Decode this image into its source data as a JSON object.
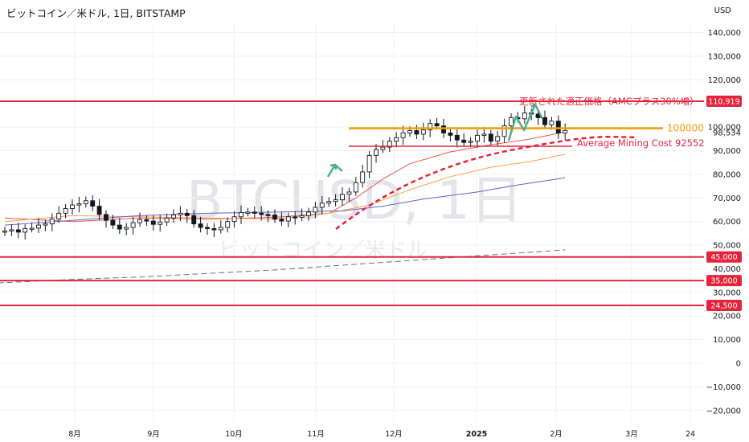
{
  "header": {
    "title": "ビットコイン／米ドル, 1日, BITSTAMP",
    "currency": "USD"
  },
  "watermark": {
    "symbol": "BTCUSD, 1日",
    "name": "ビットコイン／米ドル"
  },
  "colors": {
    "red_line": "#e5243b",
    "orange_line": "#f59d0c",
    "candle": "#131722",
    "ma_red": "#e8584f",
    "ma_orange": "#f5a04c",
    "ma_blue": "#6462c8",
    "ma_gray": "#6b6f78",
    "arrow": "#4cae8e"
  },
  "chart_data": {
    "type": "line",
    "title": "ビットコイン／米ドル, 1日, BITSTAMP",
    "y_axis": {
      "unit": "USD",
      "range": [
        -25000,
        150000
      ],
      "ticks": [
        140000,
        130000,
        120000,
        100000,
        90000,
        80000,
        70000,
        60000,
        50000,
        40000,
        30000,
        20000,
        10000,
        0,
        -10000,
        -20000
      ],
      "tick_labels": [
        "140,000",
        "130,000",
        "120,000",
        "100,000",
        "90,000",
        "80,000",
        "70,000",
        "60,000",
        "50,000",
        "40,000",
        "30,000",
        "20,000",
        "10,000",
        "0",
        "−10,000",
        "−20,000"
      ]
    },
    "x_axis": {
      "tick_labels": [
        "8月",
        "9月",
        "10月",
        "11月",
        "12月",
        "2025",
        "2月",
        "3月",
        "24"
      ]
    },
    "horizontal_levels": [
      {
        "value": 110919,
        "label": "110,919",
        "color": "#e5243b"
      },
      {
        "value": 45000,
        "label": "45,000",
        "color": "#e5243b"
      },
      {
        "value": 35000,
        "label": "35,000",
        "color": "#e5243b"
      },
      {
        "value": 24500,
        "label": "24,500",
        "color": "#e5243b"
      }
    ],
    "orange_level": {
      "value": 100000,
      "label": "100000"
    },
    "last_price_label": "98,534",
    "annotations": [
      {
        "text": "更新された適正価格（AMCプラス30%増）",
        "color": "#e5243b"
      },
      {
        "text": "Average Mining Cost 92552",
        "color": "#e5243b"
      }
    ],
    "price_series": [
      [
        0,
        56000
      ],
      [
        1,
        56500
      ],
      [
        2,
        55500
      ],
      [
        3,
        57000
      ],
      [
        4,
        57200
      ],
      [
        5,
        58500
      ],
      [
        6,
        59000
      ],
      [
        7,
        61000
      ],
      [
        8,
        63500
      ],
      [
        9,
        65500
      ],
      [
        10,
        67000
      ],
      [
        11,
        67500
      ],
      [
        12,
        68800
      ],
      [
        13,
        66500
      ],
      [
        14,
        63000
      ],
      [
        15,
        60500
      ],
      [
        16,
        58500
      ],
      [
        17,
        56800
      ],
      [
        18,
        57500
      ],
      [
        19,
        59500
      ],
      [
        20,
        60800
      ],
      [
        21,
        60200
      ],
      [
        22,
        58800
      ],
      [
        23,
        59800
      ],
      [
        24,
        61500
      ],
      [
        25,
        62800
      ],
      [
        26,
        63500
      ],
      [
        27,
        62500
      ],
      [
        28,
        59000
      ],
      [
        29,
        57500
      ],
      [
        30,
        57000
      ],
      [
        31,
        56500
      ],
      [
        32,
        57500
      ],
      [
        33,
        60000
      ],
      [
        34,
        62000
      ],
      [
        35,
        63800
      ],
      [
        36,
        64000
      ],
      [
        37,
        63500
      ],
      [
        38,
        63000
      ],
      [
        39,
        62800
      ],
      [
        40,
        61000
      ],
      [
        41,
        60200
      ],
      [
        42,
        62000
      ],
      [
        43,
        61800
      ],
      [
        44,
        62500
      ],
      [
        45,
        64000
      ],
      [
        46,
        66000
      ],
      [
        47,
        67800
      ],
      [
        48,
        68500
      ],
      [
        49,
        69200
      ],
      [
        50,
        71500
      ],
      [
        51,
        72500
      ],
      [
        52,
        76500
      ],
      [
        53,
        81000
      ],
      [
        54,
        88000
      ],
      [
        55,
        90500
      ],
      [
        56,
        91500
      ],
      [
        57,
        94000
      ],
      [
        58,
        95500
      ],
      [
        59,
        97500
      ],
      [
        60,
        98500
      ],
      [
        61,
        97000
      ],
      [
        62,
        98800
      ],
      [
        63,
        101500
      ],
      [
        64,
        100500
      ],
      [
        65,
        97500
      ],
      [
        66,
        96500
      ],
      [
        67,
        94500
      ],
      [
        68,
        93500
      ],
      [
        69,
        94000
      ],
      [
        70,
        96500
      ],
      [
        71,
        97000
      ],
      [
        72,
        94000
      ],
      [
        73,
        96000
      ],
      [
        74,
        100500
      ],
      [
        75,
        104000
      ],
      [
        76,
        103500
      ],
      [
        77,
        106000
      ],
      [
        78,
        105500
      ],
      [
        79,
        104000
      ],
      [
        80,
        101000
      ],
      [
        81,
        102500
      ],
      [
        82,
        97500
      ],
      [
        83,
        98534
      ]
    ],
    "moving_averages": [
      {
        "color": "#e8584f",
        "points": [
          [
            0,
            61500
          ],
          [
            10,
            60000
          ],
          [
            20,
            61500
          ],
          [
            30,
            61000
          ],
          [
            40,
            61800
          ],
          [
            48,
            63500
          ],
          [
            52,
            70000
          ],
          [
            56,
            78000
          ],
          [
            60,
            84500
          ],
          [
            66,
            89500
          ],
          [
            72,
            92500
          ],
          [
            78,
            95000
          ],
          [
            83,
            98000
          ]
        ]
      },
      {
        "color": "#f5a04c",
        "points": [
          [
            0,
            60000
          ],
          [
            10,
            62500
          ],
          [
            20,
            62000
          ],
          [
            30,
            61500
          ],
          [
            40,
            61000
          ],
          [
            48,
            63500
          ],
          [
            54,
            67000
          ],
          [
            60,
            73500
          ],
          [
            66,
            79000
          ],
          [
            72,
            83000
          ],
          [
            78,
            85500
          ],
          [
            83,
            88500
          ]
        ]
      },
      {
        "color": "#6462c8",
        "points": [
          [
            0,
            58500
          ],
          [
            10,
            60500
          ],
          [
            20,
            62500
          ],
          [
            30,
            63500
          ],
          [
            40,
            64000
          ],
          [
            50,
            64500
          ],
          [
            56,
            66500
          ],
          [
            62,
            69500
          ],
          [
            70,
            72500
          ],
          [
            76,
            75500
          ],
          [
            83,
            78500
          ]
        ]
      },
      {
        "color": "#6b6f78",
        "points": [
          [
            -1,
            34000
          ],
          [
            10,
            35500
          ],
          [
            20,
            36500
          ],
          [
            30,
            38000
          ],
          [
            40,
            39500
          ],
          [
            50,
            41500
          ],
          [
            60,
            43500
          ],
          [
            70,
            45500
          ],
          [
            83,
            48000
          ]
        ]
      }
    ]
  }
}
